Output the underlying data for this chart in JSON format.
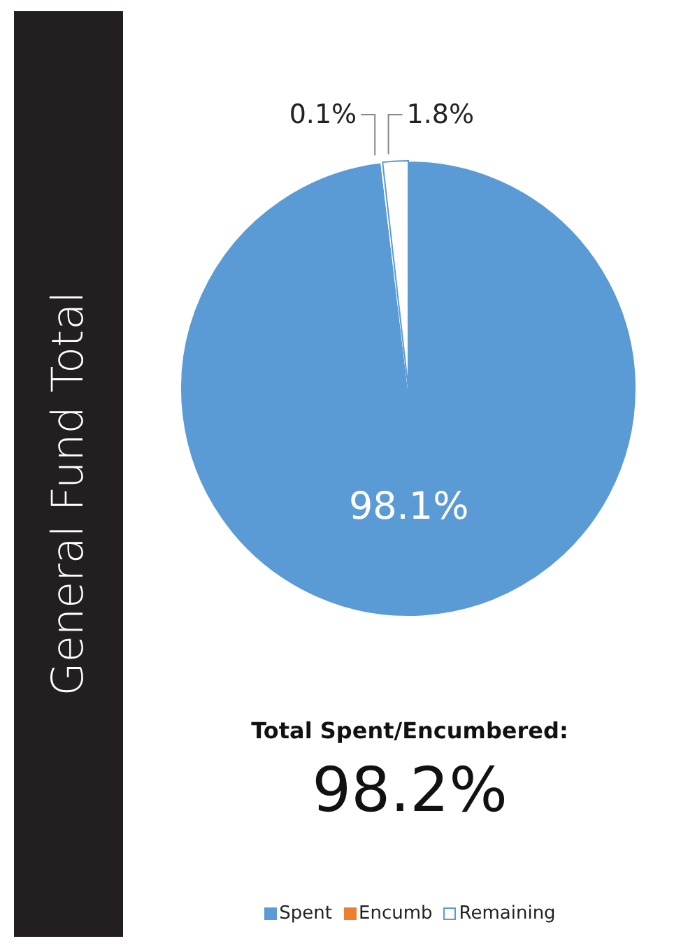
{
  "chart_data": {
    "type": "pie",
    "title": "General Fund Total",
    "categories": [
      "Spent",
      "Encumb",
      "Remaining"
    ],
    "values": [
      98.1,
      0.1,
      1.8
    ],
    "value_labels": [
      "98.1%",
      "0.1%",
      "1.8%"
    ],
    "colors": [
      "#5b9bd5",
      "#ed7d31",
      "#ffffff"
    ],
    "annotations": [
      "Total Spent/Encumbered:",
      "98.2%"
    ],
    "legend": "bottom"
  }
}
